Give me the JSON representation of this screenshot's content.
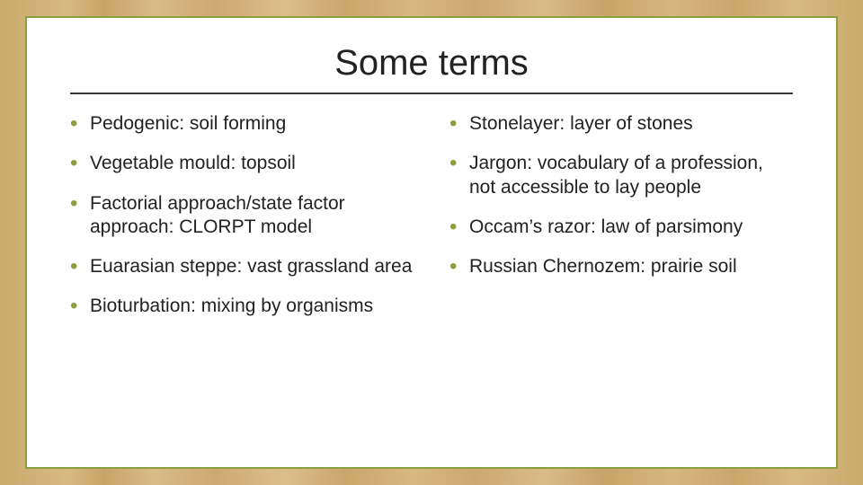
{
  "slide": {
    "title": "Some terms",
    "bullet_color": "#8aa03f",
    "border_color": "#8aa03f",
    "rule_color": "#3a3a3a",
    "text_color": "#222222",
    "card_bg": "#ffffff",
    "title_fontsize": 40,
    "body_fontsize": 21,
    "left_items": [
      "Pedogenic: soil forming",
      "Vegetable mould: topsoil",
      "Factorial approach/state factor approach: CLORPT model",
      "Euarasian steppe: vast grassland area",
      "Bioturbation: mixing by organisms"
    ],
    "right_items": [
      "Stonelayer: layer of stones",
      "Jargon: vocabulary of a profession, not accessible to lay people",
      "Occam’s razor: law of parsimony",
      "Russian Chernozem: prairie soil"
    ]
  }
}
